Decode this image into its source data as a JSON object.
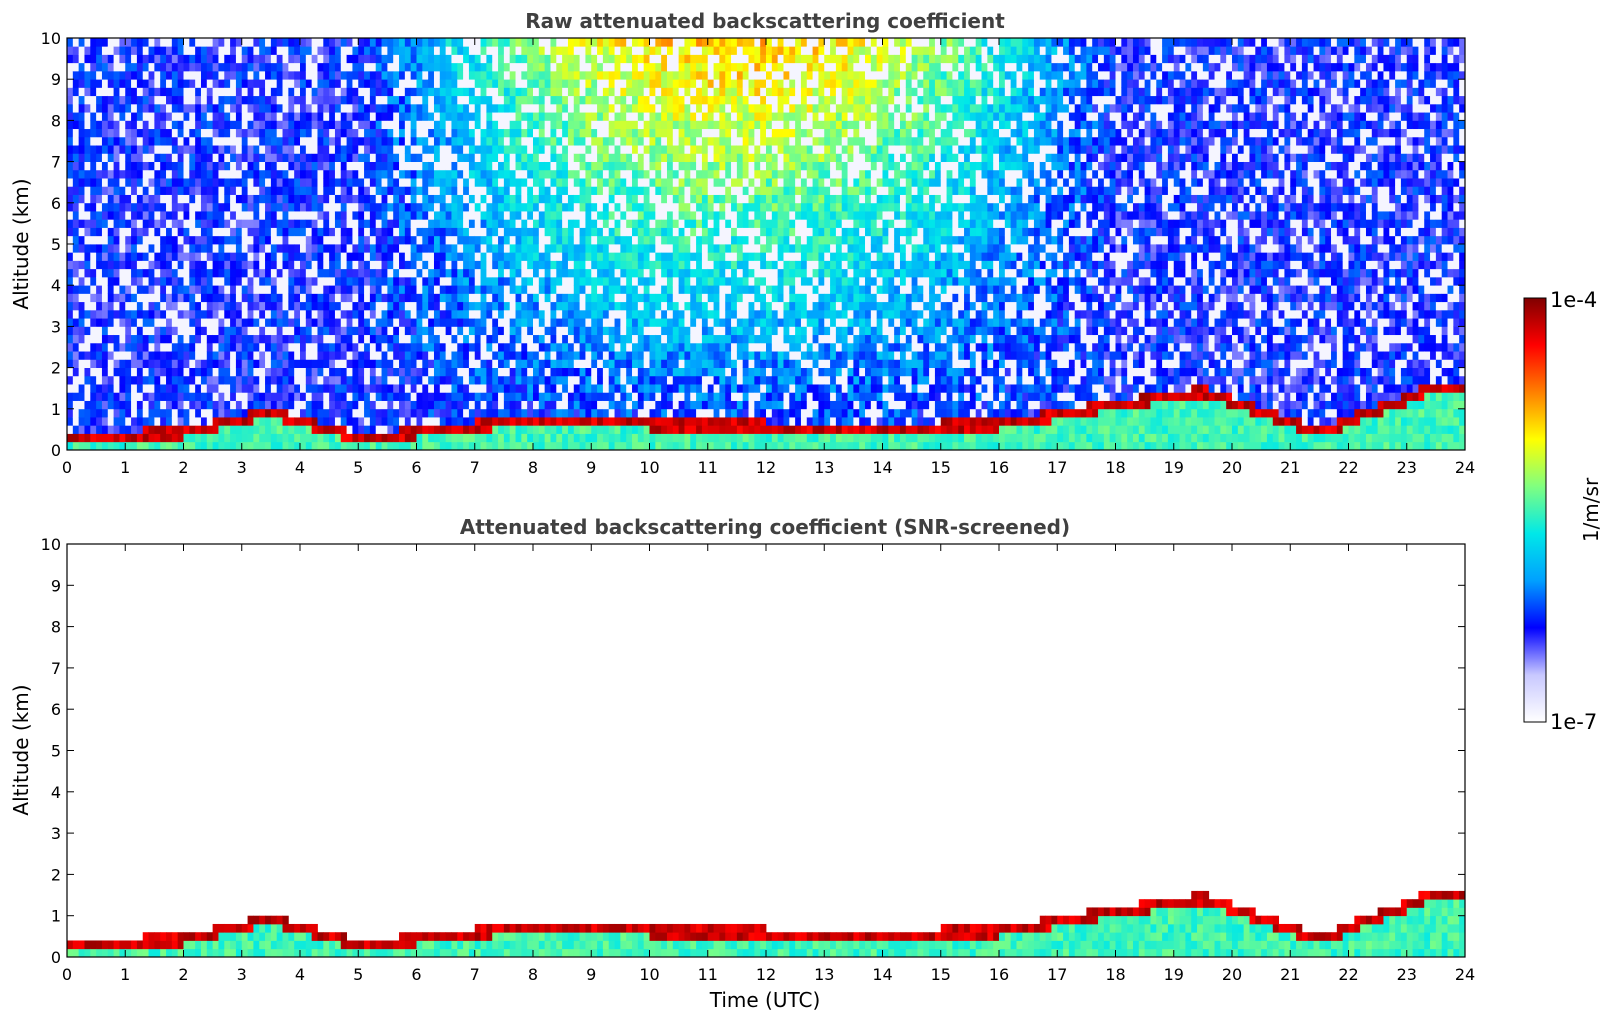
{
  "chart_data": [
    {
      "type": "heatmap",
      "title": "Raw attenuated backscattering coefficient",
      "ylabel": "Altitude (km)",
      "xlabel": "",
      "xlim": [
        0,
        24
      ],
      "ylim": [
        0,
        10
      ],
      "xticks": [
        "0",
        "1",
        "2",
        "3",
        "4",
        "5",
        "6",
        "7",
        "8",
        "9",
        "10",
        "11",
        "12",
        "13",
        "14",
        "15",
        "16",
        "17",
        "18",
        "19",
        "20",
        "21",
        "22",
        "23",
        "24"
      ],
      "yticks": [
        "0",
        "1",
        "2",
        "3",
        "4",
        "5",
        "6",
        "7",
        "8",
        "9",
        "10"
      ],
      "layers": [
        {
          "x": 0.0,
          "y": 0.15
        },
        {
          "x": 2.0,
          "y": 0.3
        },
        {
          "x": 3.5,
          "y": 0.8
        },
        {
          "x": 5.0,
          "y": 0.15
        },
        {
          "x": 8.0,
          "y": 0.6
        },
        {
          "x": 10.0,
          "y": 0.5
        },
        {
          "x": 14.0,
          "y": 0.4
        },
        {
          "x": 16.0,
          "y": 0.5
        },
        {
          "x": 19.5,
          "y": 1.3
        },
        {
          "x": 21.5,
          "y": 0.3
        },
        {
          "x": 23.5,
          "y": 1.4
        }
      ]
    },
    {
      "type": "heatmap",
      "title": "Attenuated backscattering coefficient (SNR-screened)",
      "ylabel": "Altitude (km)",
      "xlabel": "Time (UTC)",
      "xlim": [
        0,
        24
      ],
      "ylim": [
        0,
        10
      ],
      "xticks": [
        "0",
        "1",
        "2",
        "3",
        "4",
        "5",
        "6",
        "7",
        "8",
        "9",
        "10",
        "11",
        "12",
        "13",
        "14",
        "15",
        "16",
        "17",
        "18",
        "19",
        "20",
        "21",
        "22",
        "23",
        "24"
      ],
      "yticks": [
        "0",
        "1",
        "2",
        "3",
        "4",
        "5",
        "6",
        "7",
        "8",
        "9",
        "10"
      ]
    }
  ],
  "colorbar": {
    "max_label": "1e-4",
    "min_label": "1e-7",
    "unit_label": "1/m/sr",
    "scale": "log",
    "colormap": [
      "#ffffff",
      "#c8c8ff",
      "#0000ff",
      "#00a0ff",
      "#00e8e8",
      "#80ff80",
      "#ffff00",
      "#ff8000",
      "#ff0000",
      "#800000"
    ]
  }
}
